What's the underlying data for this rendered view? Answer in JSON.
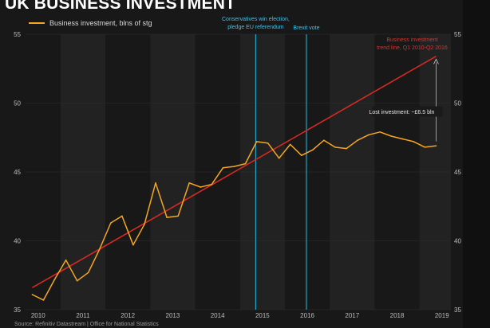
{
  "title": "UK BUSINESS INVESTMENT",
  "source": "Source: Refinitiv Datastream | Office for National Statistics",
  "colors": {
    "background": "#181818",
    "band": "#222222",
    "series": "#f5a623",
    "trend": "#d42a24",
    "event_lines": "#1fa3c9"
  },
  "chart_data": {
    "type": "line",
    "legend": "top-left",
    "grid": true,
    "ylim": [
      35,
      55
    ],
    "yticks": [
      35,
      40,
      45,
      50,
      55
    ],
    "xlim": [
      2009.72,
      2019.2
    ],
    "xticks": [
      "2010",
      "2011",
      "2012",
      "2013",
      "2014",
      "2015",
      "2016",
      "2017",
      "2018",
      "2019"
    ],
    "series": [
      {
        "name": "Business investment, blns of stg",
        "quarters": [
          "2010 Q1",
          "2010 Q2",
          "2010 Q3",
          "2010 Q4",
          "2011 Q1",
          "2011 Q2",
          "2011 Q3",
          "2011 Q4",
          "2012 Q1",
          "2012 Q2",
          "2012 Q3",
          "2012 Q4",
          "2013 Q1",
          "2013 Q2",
          "2013 Q3",
          "2013 Q4",
          "2014 Q1",
          "2014 Q2",
          "2014 Q3",
          "2014 Q4",
          "2015 Q1",
          "2015 Q2",
          "2015 Q3",
          "2015 Q4",
          "2016 Q1",
          "2016 Q2",
          "2016 Q3",
          "2016 Q4",
          "2017 Q1",
          "2017 Q2",
          "2017 Q3",
          "2017 Q4",
          "2018 Q1",
          "2018 Q2",
          "2018 Q3",
          "2018 Q4",
          "2019 Q1"
        ],
        "x": [
          2009.87,
          2010.12,
          2010.37,
          2010.62,
          2010.87,
          2011.12,
          2011.37,
          2011.62,
          2011.87,
          2012.12,
          2012.37,
          2012.62,
          2012.87,
          2013.12,
          2013.37,
          2013.62,
          2013.87,
          2014.12,
          2014.37,
          2014.62,
          2014.87,
          2015.12,
          2015.37,
          2015.62,
          2015.87,
          2016.12,
          2016.37,
          2016.62,
          2016.87,
          2017.12,
          2017.37,
          2017.62,
          2017.87,
          2018.12,
          2018.37,
          2018.62,
          2018.87
        ],
        "values": [
          36.1,
          35.7,
          37.2,
          38.6,
          37.1,
          37.7,
          39.4,
          41.3,
          41.8,
          39.7,
          41.2,
          44.2,
          41.7,
          41.8,
          44.2,
          43.9,
          44.1,
          45.3,
          45.4,
          45.6,
          47.2,
          47.1,
          46.0,
          47.0,
          46.2,
          46.6,
          47.3,
          46.8,
          46.7,
          47.3,
          47.7,
          47.9,
          47.6,
          47.4,
          47.2,
          46.8,
          46.9
        ]
      },
      {
        "name": "Business investment trend line, Q1 2010-Q2 2016",
        "x": [
          2009.87,
          2018.87
        ],
        "values": [
          36.6,
          53.4
        ]
      }
    ],
    "events": [
      {
        "x": 2014.85,
        "label_lines": [
          "Conservatives win election,",
          "pledge EU referendum"
        ]
      },
      {
        "x": 2015.98,
        "label_lines": [
          "Brexit vote"
        ]
      }
    ],
    "annotations": {
      "trend_label": [
        "Business investment",
        "trend line, Q1 2010-Q2 2016"
      ],
      "lost_investment": "Lost investment: ~£6.5 bln",
      "gap_from": 47.1,
      "gap_to": 53.3,
      "gap_x": 2018.87
    }
  }
}
